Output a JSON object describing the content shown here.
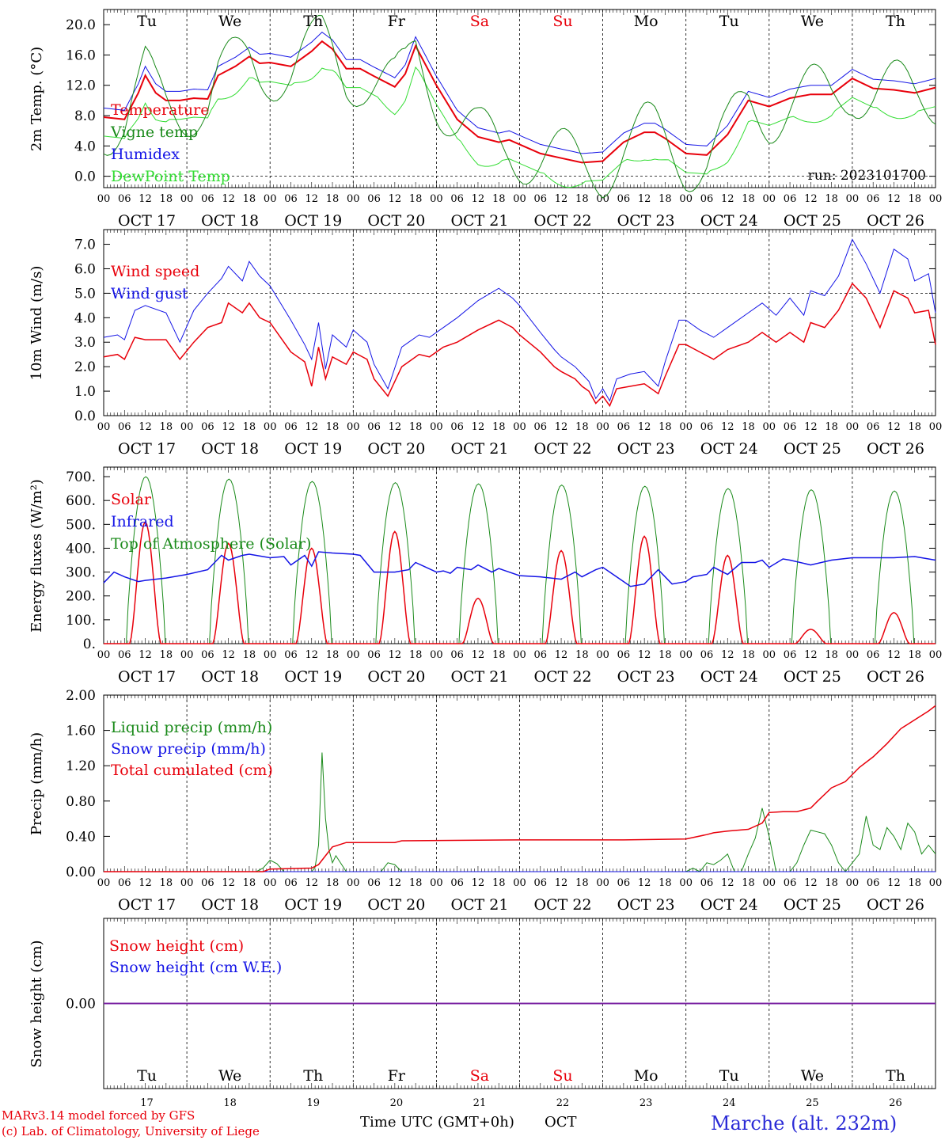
{
  "meta": {
    "run_label": "run: 2023101700",
    "credit_line1": "MARv3.14 model forced by GFS",
    "credit_line2": "(c) Lab. of Climatology, University of Liege",
    "station": "Marche (alt. 232m)",
    "xaxis_title": "Time UTC (GMT+0h)",
    "month": "OCT"
  },
  "colors": {
    "red": "#e8000b",
    "darkgreen": "#1a8a1a",
    "blue": "#1414e6",
    "lightgreen": "#33dd33",
    "purple": "#7a1fa0",
    "weekend": "#e8000b",
    "text": "#000000",
    "station": "#2b2bd6"
  },
  "days": {
    "weekdays": [
      "Tu",
      "We",
      "Th",
      "Fr",
      "Sa",
      "Su",
      "Mo",
      "Tu",
      "We",
      "Th"
    ],
    "weekend_flags": [
      false,
      false,
      false,
      false,
      true,
      true,
      false,
      false,
      false,
      false
    ],
    "date_labels": [
      "OCT 17",
      "OCT 18",
      "OCT 19",
      "OCT 20",
      "OCT 21",
      "OCT 22",
      "OCT 23",
      "OCT 24",
      "OCT 25",
      "OCT 26"
    ],
    "day_numbers": [
      "17",
      "18",
      "19",
      "20",
      "21",
      "22",
      "23",
      "24",
      "25",
      "26"
    ],
    "hour_ticks": [
      "00",
      "06",
      "12",
      "18"
    ]
  },
  "chart_data": [
    {
      "type": "line",
      "ylabel": "2m Temp. (°C)",
      "ylim": [
        -1.5,
        22
      ],
      "yticks": [
        "0.0",
        "4.0",
        "8.0",
        "12.0",
        "16.0",
        "20.0"
      ],
      "ytick_values": [
        0,
        4,
        8,
        12,
        16,
        20
      ],
      "ref_line": 0,
      "x_unit": "hours since 2023-10-17 00 UTC",
      "xlim": [
        0,
        240
      ],
      "series": [
        {
          "name": "Temperature",
          "color": "red",
          "width": 2,
          "x": [
            0,
            6,
            10,
            12,
            15,
            18,
            22,
            26,
            30,
            33,
            38,
            42,
            45,
            48,
            54,
            60,
            63,
            66,
            70,
            74,
            78,
            84,
            87,
            90,
            96,
            102,
            108,
            114,
            117,
            120,
            126,
            132,
            138,
            144,
            150,
            156,
            159,
            162,
            168,
            174,
            180,
            186,
            192,
            198,
            204,
            210,
            216,
            222,
            228,
            234,
            240
          ],
          "y": [
            7.8,
            7.5,
            11,
            13.3,
            11,
            10,
            10,
            10.3,
            10.2,
            13.3,
            14.5,
            15.8,
            14.9,
            15,
            14.5,
            16.5,
            17.8,
            16.8,
            14.2,
            14.2,
            13.2,
            11.8,
            13.5,
            17.2,
            12,
            7.5,
            5.2,
            4.5,
            4.8,
            4.2,
            3,
            2.4,
            1.8,
            2,
            4.5,
            5.8,
            5.8,
            5,
            3,
            2.8,
            5.5,
            10,
            9.2,
            10.3,
            10.8,
            10.8,
            12.9,
            11.6,
            11.4,
            11,
            11.7
          ]
        }
      ]
    },
    {
      "type": "line",
      "ylabel": "10m Wind (m/s)",
      "ylim": [
        0,
        7.6
      ],
      "yticks": [
        "0.0",
        "1.0",
        "2.0",
        "3.0",
        "4.0",
        "5.0",
        "6.0",
        "7.0"
      ],
      "ytick_values": [
        0,
        1,
        2,
        3,
        4,
        5,
        6,
        7
      ],
      "ref_line": 5,
      "x_unit": "hours since 2023-10-17 00 UTC",
      "xlim": [
        0,
        240
      ],
      "series": [
        {
          "name": "Wind speed",
          "color": "red",
          "width": 1.5,
          "x": [
            0,
            4,
            6,
            9,
            12,
            18,
            22,
            26,
            30,
            34,
            36,
            40,
            42,
            45,
            48,
            54,
            58,
            60,
            62,
            64,
            66,
            70,
            72,
            76,
            78,
            82,
            86,
            88,
            91,
            94,
            98,
            102,
            108,
            114,
            118,
            120,
            126,
            130,
            132,
            136,
            138,
            140,
            142,
            144,
            146,
            148,
            152,
            156,
            160,
            162,
            166,
            168,
            172,
            176,
            180,
            186,
            190,
            194,
            198,
            202,
            204,
            208,
            212,
            216,
            220,
            224,
            228,
            232,
            234,
            238,
            240
          ],
          "y": [
            2.4,
            2.5,
            2.3,
            3.2,
            3.1,
            3.1,
            2.3,
            3.0,
            3.6,
            3.8,
            4.6,
            4.2,
            4.6,
            4.0,
            3.8,
            2.6,
            2.2,
            1.2,
            2.8,
            1.5,
            2.4,
            2.1,
            2.6,
            2.3,
            1.5,
            0.8,
            2.0,
            2.2,
            2.5,
            2.4,
            2.8,
            3.0,
            3.5,
            3.9,
            3.6,
            3.3,
            2.6,
            2.0,
            1.8,
            1.5,
            1.2,
            1.0,
            0.5,
            0.8,
            0.4,
            1.1,
            1.2,
            1.3,
            0.9,
            1.6,
            2.9,
            2.9,
            2.6,
            2.3,
            2.7,
            3.0,
            3.4,
            3.0,
            3.4,
            3.0,
            3.8,
            3.6,
            4.3,
            5.4,
            4.8,
            3.6,
            5.1,
            4.8,
            4.2,
            4.3,
            2.9
          ]
        },
        {
          "name": "Wind gust",
          "color": "blue",
          "width": 1,
          "x": [
            0,
            4,
            6,
            9,
            12,
            18,
            22,
            26,
            30,
            34,
            36,
            40,
            42,
            45,
            48,
            54,
            58,
            60,
            62,
            64,
            66,
            70,
            72,
            76,
            78,
            82,
            86,
            88,
            91,
            94,
            98,
            102,
            108,
            114,
            118,
            120,
            126,
            130,
            132,
            136,
            138,
            140,
            142,
            144,
            146,
            148,
            152,
            156,
            160,
            162,
            166,
            168,
            172,
            176,
            180,
            186,
            190,
            194,
            198,
            202,
            204,
            208,
            212,
            216,
            220,
            224,
            228,
            232,
            234,
            238,
            240
          ],
          "y": [
            3.2,
            3.3,
            3.1,
            4.3,
            4.5,
            4.2,
            3.0,
            4.3,
            5.0,
            5.6,
            6.1,
            5.5,
            6.3,
            5.7,
            5.3,
            3.9,
            2.9,
            2.3,
            3.8,
            1.9,
            3.3,
            2.8,
            3.5,
            3.0,
            2.1,
            1.1,
            2.8,
            3.0,
            3.3,
            3.2,
            3.6,
            4.0,
            4.7,
            5.2,
            4.8,
            4.5,
            3.4,
            2.7,
            2.4,
            2.0,
            1.7,
            1.4,
            0.7,
            1.1,
            0.6,
            1.5,
            1.7,
            1.8,
            1.2,
            2.2,
            3.9,
            3.9,
            3.5,
            3.2,
            3.6,
            4.2,
            4.6,
            4.1,
            4.8,
            4.1,
            5.1,
            4.9,
            5.7,
            7.2,
            6.2,
            5.0,
            6.8,
            6.4,
            5.5,
            5.8,
            4.2
          ]
        }
      ]
    },
    {
      "type": "line",
      "ylabel": "Energy fluxes (W/m²)",
      "ylim": [
        0,
        740
      ],
      "yticks": [
        "0.",
        "100.",
        "200.",
        "300.",
        "400.",
        "500.",
        "600.",
        "700."
      ],
      "ytick_values": [
        0,
        100,
        200,
        300,
        400,
        500,
        600,
        700
      ],
      "x_unit": "hours since 2023-10-17 00 UTC",
      "xlim": [
        0,
        240
      ],
      "toa_peaks": [
        700,
        690,
        680,
        675,
        670,
        665,
        660,
        650,
        645,
        640
      ],
      "solar_peaks": [
        510,
        420,
        400,
        470,
        190,
        390,
        450,
        370,
        60,
        130
      ],
      "series": [
        {
          "name": "Solar",
          "color": "red",
          "width": 1.5
        },
        {
          "name": "Infrared",
          "color": "blue",
          "width": 1.5,
          "x": [
            0,
            3,
            6,
            10,
            12,
            18,
            24,
            30,
            34,
            36,
            40,
            42,
            48,
            52,
            54,
            58,
            60,
            62,
            66,
            72,
            74,
            78,
            84,
            88,
            90,
            96,
            98,
            100,
            102,
            106,
            108,
            112,
            114,
            120,
            126,
            132,
            136,
            138,
            142,
            144,
            146,
            150,
            152,
            156,
            160,
            164,
            168,
            170,
            174,
            176,
            180,
            184,
            188,
            190,
            192,
            196,
            198,
            204,
            210,
            216,
            222,
            228,
            234,
            240
          ],
          "y": [
            255,
            300,
            280,
            260,
            265,
            275,
            290,
            310,
            370,
            350,
            370,
            375,
            360,
            365,
            330,
            370,
            325,
            385,
            380,
            375,
            370,
            300,
            300,
            310,
            340,
            300,
            305,
            295,
            320,
            310,
            330,
            300,
            315,
            285,
            280,
            270,
            300,
            280,
            310,
            320,
            300,
            260,
            240,
            250,
            310,
            250,
            260,
            280,
            290,
            320,
            290,
            340,
            340,
            350,
            320,
            355,
            350,
            330,
            350,
            360,
            360,
            360,
            365,
            350
          ]
        },
        {
          "name": "Top of Atmosphere (Solar)",
          "color": "darkgreen",
          "width": 1
        }
      ]
    },
    {
      "type": "line",
      "ylabel": "Precip (mm/h)",
      "ylim": [
        0,
        2.0
      ],
      "yticks": [
        "0.00",
        "0.40",
        "0.80",
        "1.20",
        "1.60",
        "2.00"
      ],
      "ytick_values": [
        0,
        0.4,
        0.8,
        1.2,
        1.6,
        2.0
      ],
      "x_unit": "hours since 2023-10-17 00 UTC",
      "xlim": [
        0,
        240
      ],
      "series": [
        {
          "name": "Liquid precip (mm/h)",
          "color": "darkgreen",
          "width": 1,
          "x": [
            0,
            44,
            46,
            48,
            50,
            52,
            54,
            56,
            58,
            60,
            61,
            62,
            63,
            64,
            65,
            66,
            67,
            68,
            70,
            72,
            80,
            82,
            84,
            86,
            90,
            120,
            150,
            168,
            170,
            172,
            174,
            176,
            178,
            180,
            182,
            184,
            186,
            188,
            190,
            192,
            194,
            196,
            198,
            200,
            202,
            204,
            206,
            208,
            210,
            212,
            214,
            216,
            218,
            220,
            222,
            224,
            226,
            228,
            230,
            232,
            234,
            236,
            238,
            240
          ],
          "y": [
            0,
            0,
            0.04,
            0.13,
            0.09,
            0,
            0,
            0,
            0,
            0,
            0.05,
            0.3,
            1.35,
            0.6,
            0.25,
            0.1,
            0.18,
            0.12,
            0,
            0,
            0,
            0.1,
            0.08,
            0,
            0,
            0,
            0,
            0,
            0.04,
            0,
            0.1,
            0.08,
            0.13,
            0.2,
            0,
            0,
            0.2,
            0.38,
            0.72,
            0.4,
            0,
            0,
            0,
            0.1,
            0.3,
            0.47,
            0.45,
            0.43,
            0.3,
            0.1,
            0,
            0.1,
            0.2,
            0.63,
            0.3,
            0.25,
            0.5,
            0.4,
            0.25,
            0.55,
            0.45,
            0.2,
            0.3,
            0.2
          ]
        },
        {
          "name": "Snow precip (mm/h)",
          "color": "blue",
          "width": 1,
          "x": [
            0,
            240
          ],
          "y": [
            0,
            0
          ]
        },
        {
          "name": "Total cumulated (cm)",
          "color": "red",
          "width": 1.5,
          "x": [
            0,
            46,
            48,
            60,
            62,
            64,
            66,
            70,
            72,
            84,
            86,
            120,
            150,
            168,
            174,
            176,
            180,
            186,
            190,
            192,
            196,
            200,
            204,
            206,
            210,
            214,
            218,
            222,
            226,
            230,
            234,
            238,
            240
          ],
          "y": [
            0,
            0,
            0.03,
            0.04,
            0.08,
            0.18,
            0.28,
            0.33,
            0.33,
            0.33,
            0.35,
            0.36,
            0.36,
            0.37,
            0.42,
            0.44,
            0.46,
            0.48,
            0.55,
            0.67,
            0.68,
            0.68,
            0.72,
            0.8,
            0.95,
            1.02,
            1.18,
            1.3,
            1.45,
            1.62,
            1.72,
            1.82,
            1.88
          ]
        }
      ]
    },
    {
      "type": "line",
      "ylabel": "Snow height (cm)",
      "ylim": [
        -1,
        1
      ],
      "yticks": [
        "0.00"
      ],
      "ytick_values": [
        0
      ],
      "x_unit": "hours since 2023-10-17 00 UTC",
      "xlim": [
        0,
        240
      ],
      "series": [
        {
          "name": "Snow height (cm)",
          "color": "red",
          "width": 1.5,
          "x": [
            0,
            240
          ],
          "y": [
            0,
            0
          ]
        },
        {
          "name": "Snow height (cm W.E.)",
          "color": "blue",
          "width": 1.5,
          "x": [
            0,
            240
          ],
          "y": [
            0,
            0
          ]
        }
      ]
    }
  ]
}
